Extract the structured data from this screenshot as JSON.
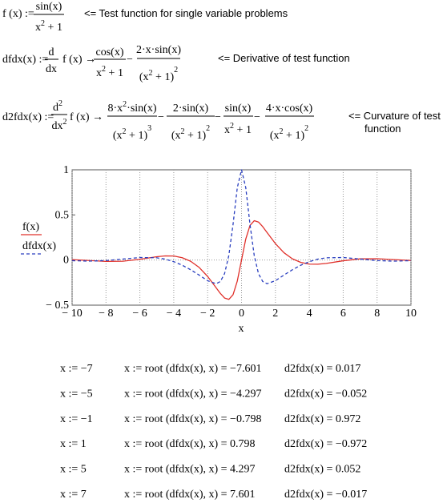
{
  "equations": {
    "f": {
      "lhs": "f (x) :=",
      "num": "sin(x)",
      "den": "x",
      "den_sup": "2",
      "den_tail": " + 1",
      "note": "<=  Test function for single variable problems"
    },
    "dfdx": {
      "lhs": "dfdx(x) :=",
      "op_num": "d",
      "op_den": "dx",
      "arg": "f (x) →",
      "t1_num": "cos(x)",
      "t1_den": "x",
      "t1_den_sup": "2",
      "t1_den_tail": " + 1",
      "minus1": "−",
      "t2_num": "2·x·sin(x)",
      "t2_den": "(x",
      "t2_den_sup": "2",
      "t2_den_tail": " + 1)",
      "t2_den_pow": "2",
      "note": "<= Derivative of test function"
    },
    "d2fdx": {
      "lhs": "d2fdx(x) :=",
      "op_num": "d",
      "op_num_sup": "2",
      "op_den": "dx",
      "op_den_sup": "2",
      "arg": "f (x) →",
      "t1_num": "8·x",
      "t1_num_sup": "2",
      "t1_num_tail": "·sin(x)",
      "t1_den": "(x",
      "t1_den_sup": "2",
      "t1_den_tail": " + 1)",
      "t1_den_pow": "3",
      "minus1": "−",
      "t2_num": "2·sin(x)",
      "t2_den": "(x",
      "t2_den_sup": "2",
      "t2_den_tail": " + 1)",
      "t2_den_pow": "2",
      "minus2": "−",
      "t3_num": "sin(x)",
      "t3_den": "x",
      "t3_den_sup": "2",
      "t3_den_tail": " + 1",
      "minus3": "−",
      "t4_num": "4·x·cos(x)",
      "t4_den": "(x",
      "t4_den_sup": "2",
      "t4_den_tail": " + 1)",
      "t4_den_pow": "2",
      "note_line1": "<= Curvature of test",
      "note_line2": "function"
    }
  },
  "chart_data": {
    "type": "line",
    "x_label": "x",
    "x": [
      -10,
      -9,
      -8,
      -7,
      -6,
      -5,
      -4.5,
      -4,
      -3.5,
      -3,
      -2.5,
      -2,
      -1.5,
      -1.25,
      -1,
      -0.75,
      -0.5,
      -0.25,
      0,
      0.25,
      0.5,
      0.75,
      1,
      1.25,
      1.5,
      2,
      2.5,
      3,
      3.5,
      4,
      4.5,
      5,
      6,
      7,
      8,
      9,
      10
    ],
    "series": [
      {
        "name": "f(x)",
        "color": "#e0302a",
        "dashed": false,
        "values": [
          0.005,
          -0.005,
          -0.015,
          -0.013,
          0.008,
          0.037,
          0.046,
          0.045,
          0.026,
          -0.014,
          -0.082,
          -0.182,
          -0.307,
          -0.37,
          -0.421,
          -0.436,
          -0.384,
          -0.233,
          0,
          0.233,
          0.384,
          0.436,
          0.421,
          0.37,
          0.307,
          0.182,
          0.082,
          0.014,
          -0.026,
          -0.045,
          -0.046,
          -0.037,
          -0.008,
          0.013,
          0.015,
          0.005,
          -0.005
        ]
      },
      {
        "name": "dfdx(x)",
        "color": "#2a3fbf",
        "dashed": true,
        "values": [
          -0.007,
          -0.012,
          -0.006,
          0.011,
          0.028,
          0.025,
          0.01,
          -0.018,
          -0.057,
          -0.108,
          -0.167,
          -0.229,
          -0.262,
          -0.238,
          -0.15,
          0.05,
          0.395,
          0.802,
          1,
          0.802,
          0.395,
          0.05,
          -0.15,
          -0.238,
          -0.262,
          -0.229,
          -0.167,
          -0.108,
          -0.057,
          -0.018,
          0.01,
          0.025,
          0.028,
          0.011,
          -0.006,
          -0.012,
          -0.007
        ]
      }
    ],
    "xlim": [
      -10,
      10
    ],
    "ylim": [
      -0.5,
      1
    ],
    "xticks": [
      {
        "value": -10,
        "label": "− 10"
      },
      {
        "value": -8,
        "label": "− 8"
      },
      {
        "value": -6,
        "label": "− 6"
      },
      {
        "value": -4,
        "label": "− 4"
      },
      {
        "value": -2,
        "label": "− 2"
      },
      0,
      2,
      4,
      6,
      8,
      10
    ],
    "yticks": [
      {
        "value": -0.5,
        "label": "− 0.5"
      },
      0,
      0.5,
      1
    ],
    "grid": true,
    "legend": "left"
  },
  "results": {
    "rows": [
      [
        "x := −7",
        "x := root (dfdx(x), x) = −7.601",
        "d2fdx(x) = 0.017"
      ],
      [
        "x := −5",
        "x := root (dfdx(x), x) = −4.297",
        "d2fdx(x) = −0.052"
      ],
      [
        "x := −1",
        "x := root (dfdx(x), x) = −0.798",
        "d2fdx(x) = 0.972"
      ],
      [
        "x := 1",
        "x := root (dfdx(x), x) = 0.798",
        "d2fdx(x) = −0.972"
      ],
      [
        "x := 5",
        "x := root (dfdx(x), x) = 4.297",
        "d2fdx(x) = 0.052"
      ],
      [
        "x := 7",
        "x := root (dfdx(x), x) = 7.601",
        "d2fdx(x) = −0.017"
      ]
    ]
  }
}
